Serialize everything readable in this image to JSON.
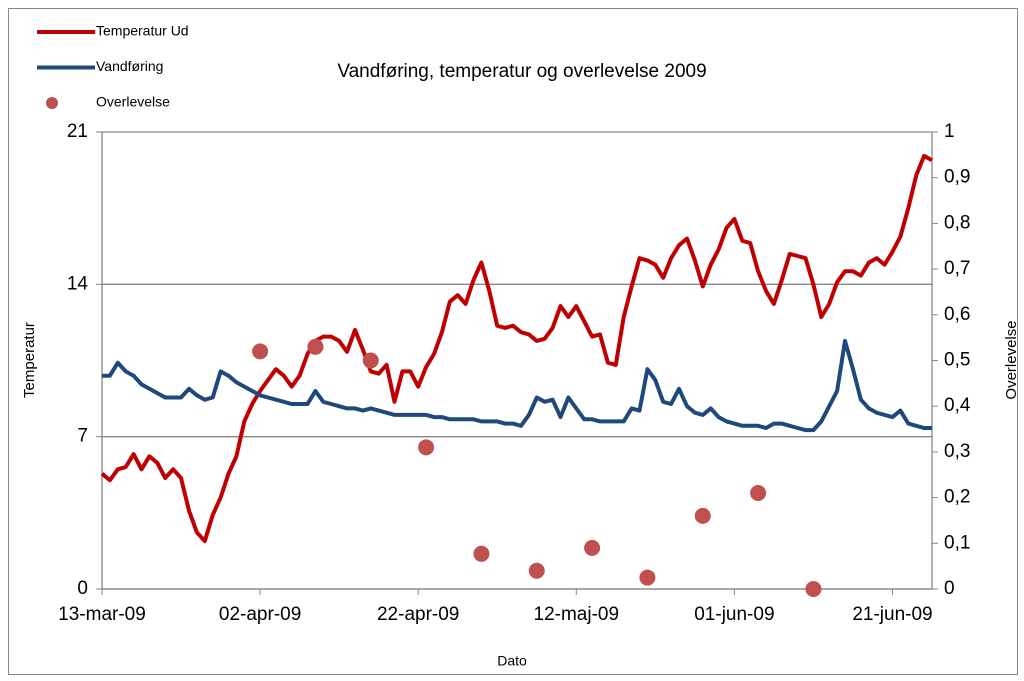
{
  "chart_data": {
    "type": "line",
    "title": "Vandføring, temperatur og overlevelse 2009",
    "xlabel": "Dato",
    "ylabel": "Temperatur",
    "y2label": "Overlevelse",
    "x": [
      "2009-03-13",
      "2009-03-14",
      "2009-03-15",
      "2009-03-16",
      "2009-03-17",
      "2009-03-18",
      "2009-03-19",
      "2009-03-20",
      "2009-03-21",
      "2009-03-22",
      "2009-03-23",
      "2009-03-24",
      "2009-03-25",
      "2009-03-26",
      "2009-03-27",
      "2009-03-28",
      "2009-03-29",
      "2009-03-30",
      "2009-03-31",
      "2009-04-01",
      "2009-04-02",
      "2009-04-03",
      "2009-04-04",
      "2009-04-05",
      "2009-04-06",
      "2009-04-07",
      "2009-04-08",
      "2009-04-09",
      "2009-04-10",
      "2009-04-11",
      "2009-04-12",
      "2009-04-13",
      "2009-04-14",
      "2009-04-15",
      "2009-04-16",
      "2009-04-17",
      "2009-04-18",
      "2009-04-19",
      "2009-04-20",
      "2009-04-21",
      "2009-04-22",
      "2009-04-23",
      "2009-04-24",
      "2009-04-25",
      "2009-04-26",
      "2009-04-27",
      "2009-04-28",
      "2009-04-29",
      "2009-04-30",
      "2009-05-01",
      "2009-05-02",
      "2009-05-03",
      "2009-05-04",
      "2009-05-05",
      "2009-05-06",
      "2009-05-07",
      "2009-05-08",
      "2009-05-09",
      "2009-05-10",
      "2009-05-11",
      "2009-05-12",
      "2009-05-13",
      "2009-05-14",
      "2009-05-15",
      "2009-05-16",
      "2009-05-17",
      "2009-05-18",
      "2009-05-19",
      "2009-05-20",
      "2009-05-21",
      "2009-05-22",
      "2009-05-23",
      "2009-05-24",
      "2009-05-25",
      "2009-05-26",
      "2009-05-27",
      "2009-05-28",
      "2009-05-29",
      "2009-05-30",
      "2009-05-31",
      "2009-06-01",
      "2009-06-02",
      "2009-06-03",
      "2009-06-04",
      "2009-06-05",
      "2009-06-06",
      "2009-06-07",
      "2009-06-08",
      "2009-06-09",
      "2009-06-10",
      "2009-06-11",
      "2009-06-12",
      "2009-06-13",
      "2009-06-14",
      "2009-06-15",
      "2009-06-16",
      "2009-06-17",
      "2009-06-18",
      "2009-06-19",
      "2009-06-20",
      "2009-06-21",
      "2009-06-22",
      "2009-06-23",
      "2009-06-24",
      "2009-06-25",
      "2009-06-26"
    ],
    "series": [
      {
        "name": "Temperatur Ud",
        "type": "line",
        "color": "#c00000",
        "values": [
          5.3,
          5.0,
          5.5,
          5.6,
          6.2,
          5.5,
          6.1,
          5.8,
          5.1,
          5.5,
          5.1,
          3.6,
          2.6,
          2.2,
          3.4,
          4.2,
          5.3,
          6.1,
          7.7,
          8.5,
          9.1,
          9.6,
          10.1,
          9.8,
          9.3,
          9.8,
          10.8,
          11.4,
          11.6,
          11.6,
          11.4,
          10.9,
          11.9,
          11.0,
          10.0,
          9.9,
          10.3,
          8.6,
          10.0,
          10.0,
          9.3,
          10.2,
          10.8,
          11.8,
          13.2,
          13.5,
          13.1,
          14.2,
          15.0,
          13.7,
          12.1,
          12.0,
          12.1,
          11.8,
          11.7,
          11.4,
          11.5,
          12.0,
          13.0,
          12.5,
          13.0,
          12.3,
          11.6,
          11.7,
          10.4,
          10.3,
          12.5,
          13.9,
          15.2,
          15.1,
          14.9,
          14.3,
          15.2,
          15.8,
          16.1,
          15.1,
          13.9,
          14.9,
          15.6,
          16.6,
          17.0,
          16.0,
          15.9,
          14.6,
          13.7,
          13.1,
          14.2,
          15.4,
          15.3,
          15.2,
          14.0,
          12.5,
          13.1,
          14.1,
          14.6,
          14.6,
          14.4,
          15.0,
          15.2,
          14.9,
          15.5,
          16.2,
          17.5,
          19.0,
          19.9,
          19.7
        ]
      },
      {
        "name": "Vandføring",
        "type": "line",
        "color": "#1f497d",
        "values": [
          9.8,
          9.8,
          10.4,
          10.0,
          9.8,
          9.4,
          9.2,
          9.0,
          8.8,
          8.8,
          8.8,
          9.2,
          8.9,
          8.7,
          8.8,
          10.0,
          9.8,
          9.5,
          9.3,
          9.1,
          8.9,
          8.8,
          8.7,
          8.6,
          8.5,
          8.5,
          8.5,
          9.1,
          8.6,
          8.5,
          8.4,
          8.3,
          8.3,
          8.2,
          8.3,
          8.2,
          8.1,
          8.0,
          8.0,
          8.0,
          8.0,
          8.0,
          7.9,
          7.9,
          7.8,
          7.8,
          7.8,
          7.8,
          7.7,
          7.7,
          7.7,
          7.6,
          7.6,
          7.5,
          8.0,
          8.8,
          8.6,
          8.7,
          7.9,
          8.8,
          8.3,
          7.8,
          7.8,
          7.7,
          7.7,
          7.7,
          7.7,
          8.3,
          8.2,
          10.1,
          9.6,
          8.6,
          8.5,
          9.2,
          8.4,
          8.1,
          8.0,
          8.3,
          7.9,
          7.7,
          7.6,
          7.5,
          7.5,
          7.5,
          7.4,
          7.6,
          7.6,
          7.5,
          7.4,
          7.3,
          7.3,
          7.7,
          8.4,
          9.1,
          11.4,
          10.1,
          8.7,
          8.3,
          8.1,
          8.0,
          7.9,
          8.2,
          7.6,
          7.5,
          7.4,
          7.4
        ]
      },
      {
        "name": "Overlevelse",
        "type": "scatter",
        "color": "#c0504d",
        "axis": "y2",
        "x": [
          "2009-04-02",
          "2009-04-09",
          "2009-04-16",
          "2009-04-23",
          "2009-04-30",
          "2009-05-07",
          "2009-05-14",
          "2009-05-21",
          "2009-05-28",
          "2009-06-04",
          "2009-06-11"
        ],
        "values": [
          0.52,
          0.53,
          0.5,
          0.31,
          0.077,
          0.04,
          0.09,
          0.025,
          0.16,
          0.21,
          0
        ]
      }
    ],
    "xlim": [
      "2009-03-13",
      "2009-06-26"
    ],
    "xticks": [
      {
        "value": "2009-03-13",
        "label": "13-mar-09"
      },
      {
        "value": "2009-04-02",
        "label": "02-apr-09"
      },
      {
        "value": "2009-04-22",
        "label": "22-apr-09"
      },
      {
        "value": "2009-05-12",
        "label": "12-maj-09"
      },
      {
        "value": "2009-06-01",
        "label": "01-jun-09"
      },
      {
        "value": "2009-06-21",
        "label": "21-jun-09"
      }
    ],
    "ylim": [
      0,
      21
    ],
    "yticks": [
      0,
      7,
      14,
      21
    ],
    "y2lim": [
      0,
      1
    ],
    "y2ticks": [
      0,
      {
        "value": 0.1,
        "label": "0,1"
      },
      {
        "value": 0.2,
        "label": "0,2"
      },
      {
        "value": 0.3,
        "label": "0,3"
      },
      {
        "value": 0.4,
        "label": "0,4"
      },
      {
        "value": 0.5,
        "label": "0,5"
      },
      {
        "value": 0.6,
        "label": "0,6"
      },
      {
        "value": 0.7,
        "label": "0,7"
      },
      {
        "value": 0.8,
        "label": "0,8"
      },
      {
        "value": 0.9,
        "label": "0,9"
      },
      1
    ],
    "grid": true,
    "legend": "top-left"
  }
}
